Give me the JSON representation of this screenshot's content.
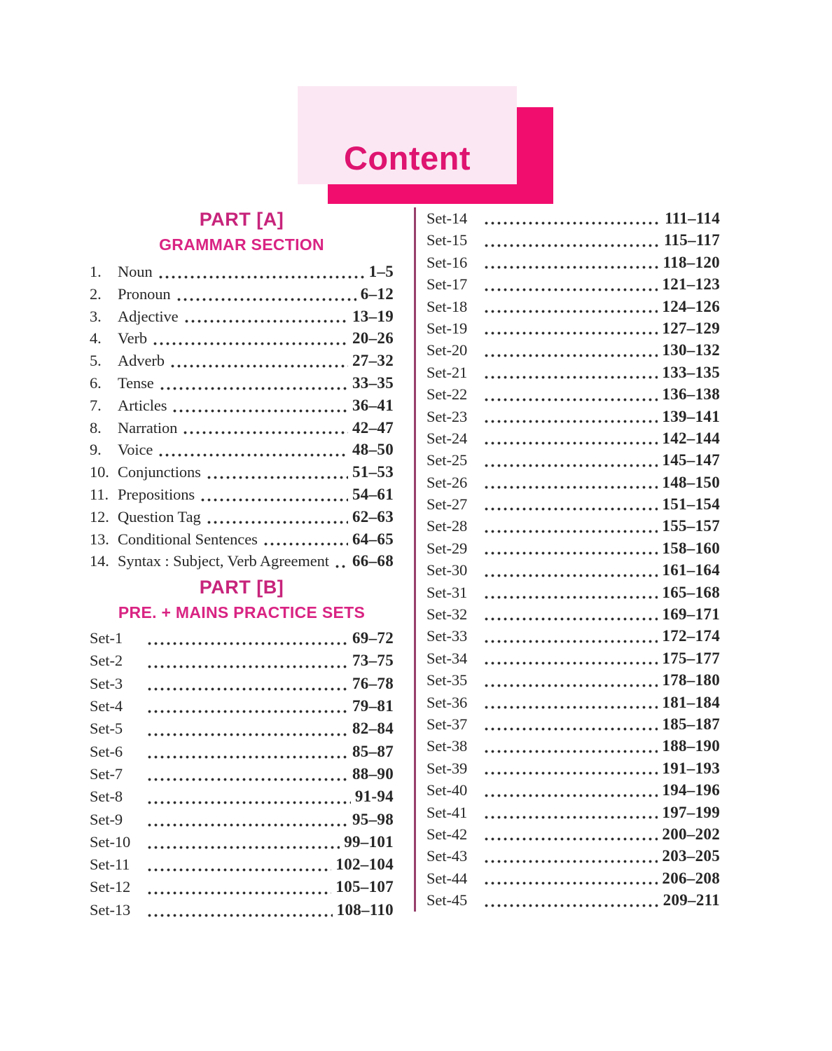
{
  "header": {
    "title": "Content"
  },
  "colors": {
    "accent_pink": "#F10D6E",
    "light_pink": "#FBE7F3",
    "title_pink": "#DE1470",
    "heading_pink": "#C7247B",
    "subheading_pink": "#D92483",
    "divider_plum": "#97406C",
    "body_text": "#262626"
  },
  "part_a": {
    "heading": "PART [A]",
    "subheading": "GRAMMAR SECTION",
    "items": [
      {
        "num": "1.",
        "label": "Noun",
        "pages": "1–5"
      },
      {
        "num": "2.",
        "label": "Pronoun",
        "pages": "6–12"
      },
      {
        "num": "3.",
        "label": "Adjective",
        "pages": "13–19"
      },
      {
        "num": "4.",
        "label": "Verb",
        "pages": "20–26"
      },
      {
        "num": "5.",
        "label": "Adverb",
        "pages": "27–32"
      },
      {
        "num": "6.",
        "label": "Tense",
        "pages": "33–35"
      },
      {
        "num": "7.",
        "label": "Articles",
        "pages": "36–41"
      },
      {
        "num": "8.",
        "label": "Narration",
        "pages": "42–47"
      },
      {
        "num": "9.",
        "label": "Voice",
        "pages": "48–50"
      },
      {
        "num": "10.",
        "label": "Conjunctions",
        "pages": "51–53"
      },
      {
        "num": "11.",
        "label": "Prepositions",
        "pages": "54–61"
      },
      {
        "num": "12.",
        "label": "Question Tag",
        "pages": "62–63"
      },
      {
        "num": "13.",
        "label": "Conditional Sentences",
        "pages": "64–65"
      },
      {
        "num": "14.",
        "label": "Syntax : Subject, Verb Agreement",
        "pages": "66–68"
      }
    ]
  },
  "part_b": {
    "heading": "PART [B]",
    "subheading": "PRE. + MAINS PRACTICE SETS",
    "items": [
      {
        "label": "Set-1",
        "pages": "69–72"
      },
      {
        "label": "Set-2",
        "pages": "73–75"
      },
      {
        "label": "Set-3",
        "pages": "76–78"
      },
      {
        "label": "Set-4",
        "pages": "79–81"
      },
      {
        "label": "Set-5",
        "pages": "82–84"
      },
      {
        "label": "Set-6",
        "pages": "85–87"
      },
      {
        "label": "Set-7",
        "pages": "88–90"
      },
      {
        "label": "Set-8",
        "pages": "91-94"
      },
      {
        "label": "Set-9",
        "pages": "95–98"
      },
      {
        "label": "Set-10",
        "pages": "99–101"
      },
      {
        "label": "Set-11",
        "pages": "102–104"
      },
      {
        "label": "Set-12",
        "pages": "105–107"
      },
      {
        "label": "Set-13",
        "pages": "108–110"
      }
    ]
  },
  "right_column": {
    "items": [
      {
        "label": "Set-14",
        "pages": "111–114"
      },
      {
        "label": "Set-15",
        "pages": "115–117"
      },
      {
        "label": "Set-16",
        "pages": "118–120"
      },
      {
        "label": "Set-17",
        "pages": "121–123"
      },
      {
        "label": "Set-18",
        "pages": "124–126"
      },
      {
        "label": "Set-19",
        "pages": "127–129"
      },
      {
        "label": "Set-20",
        "pages": "130–132"
      },
      {
        "label": "Set-21",
        "pages": "133–135"
      },
      {
        "label": "Set-22",
        "pages": "136–138"
      },
      {
        "label": "Set-23",
        "pages": "139–141"
      },
      {
        "label": "Set-24",
        "pages": "142–144"
      },
      {
        "label": "Set-25",
        "pages": "145–147"
      },
      {
        "label": "Set-26",
        "pages": "148–150"
      },
      {
        "label": "Set-27",
        "pages": "151–154"
      },
      {
        "label": "Set-28",
        "pages": "155–157"
      },
      {
        "label": "Set-29",
        "pages": "158–160"
      },
      {
        "label": "Set-30",
        "pages": "161–164"
      },
      {
        "label": "Set-31",
        "pages": "165–168"
      },
      {
        "label": "Set-32",
        "pages": "169–171"
      },
      {
        "label": "Set-33",
        "pages": "172–174"
      },
      {
        "label": "Set-34",
        "pages": "175–177"
      },
      {
        "label": "Set-35",
        "pages": "178–180"
      },
      {
        "label": "Set-36",
        "pages": "181–184"
      },
      {
        "label": "Set-37",
        "pages": "185–187"
      },
      {
        "label": "Set-38",
        "pages": "188–190"
      },
      {
        "label": "Set-39",
        "pages": "191–193"
      },
      {
        "label": "Set-40",
        "pages": "194–196"
      },
      {
        "label": "Set-41",
        "pages": "197–199"
      },
      {
        "label": "Set-42",
        "pages": "200–202"
      },
      {
        "label": "Set-43",
        "pages": "203–205"
      },
      {
        "label": "Set-44",
        "pages": "206–208"
      },
      {
        "label": "Set-45",
        "pages": "209–211"
      }
    ]
  }
}
